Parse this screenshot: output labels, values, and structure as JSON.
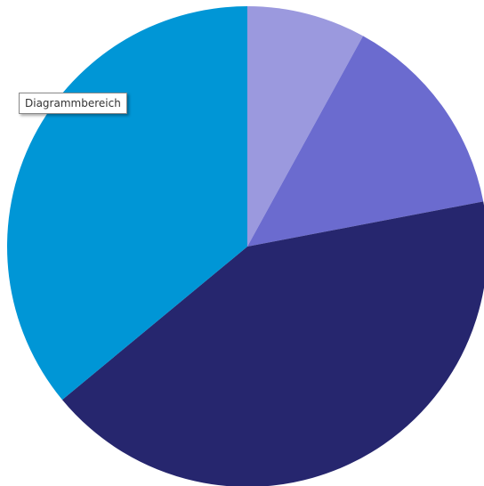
{
  "chart_data": {
    "type": "pie",
    "values": [
      8,
      14,
      42,
      36
    ],
    "colors": [
      "#9b99de",
      "#6b6bcf",
      "#26266e",
      "#0096d6"
    ],
    "tooltip": "Diagrammbereich"
  }
}
